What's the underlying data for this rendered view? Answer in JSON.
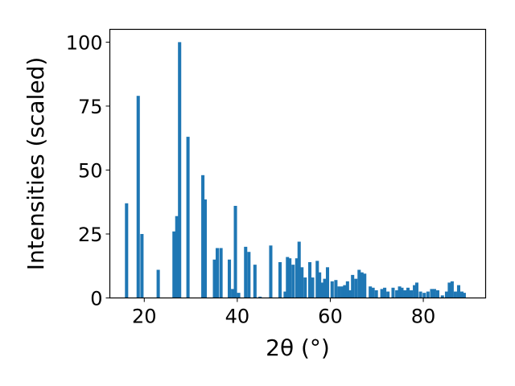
{
  "chart_data": {
    "type": "bar",
    "title": "",
    "xlabel": "2θ (°)",
    "ylabel": "Intensities (scaled)",
    "xlim": [
      12.6,
      93.4
    ],
    "ylim": [
      0,
      105
    ],
    "xticks": [
      20,
      40,
      60,
      80
    ],
    "yticks": [
      0,
      25,
      50,
      75,
      100
    ],
    "grid": false,
    "bar_color": "#1f77b4",
    "bar_width": 0.7,
    "x": [
      16.2,
      18.7,
      19.5,
      23.0,
      26.4,
      27.0,
      27.6,
      29.4,
      32.6,
      33.1,
      35.1,
      35.7,
      36.5,
      38.3,
      39.0,
      39.6,
      40.3,
      41.8,
      42.5,
      43.8,
      44.9,
      47.2,
      49.2,
      50.3,
      50.8,
      51.3,
      52.0,
      52.8,
      53.3,
      53.9,
      54.6,
      55.6,
      56.2,
      57.2,
      57.7,
      58.3,
      58.8,
      59.4,
      60.4,
      61.2,
      61.9,
      62.6,
      63.1,
      63.7,
      64.3,
      64.8,
      65.5,
      66.2,
      66.8,
      67.4,
      68.6,
      69.2,
      69.9,
      71.1,
      71.7,
      72.4,
      73.5,
      74.3,
      74.9,
      75.4,
      76.1,
      76.7,
      77.4,
      78.1,
      78.6,
      79.4,
      80.2,
      81.0,
      81.8,
      82.4,
      83.1,
      84.1,
      85.0,
      85.6,
      86.2,
      86.9,
      87.6,
      88.3,
      88.8
    ],
    "values": [
      37,
      79,
      25,
      11,
      26,
      32,
      100,
      63,
      48,
      38.5,
      15,
      19.5,
      19.5,
      15,
      3.5,
      36,
      2,
      20,
      18,
      13,
      0.5,
      20.5,
      14,
      2.5,
      16,
      15.5,
      13,
      15.5,
      22,
      12,
      8,
      14,
      8,
      14.5,
      10,
      6,
      7.5,
      12,
      6.5,
      7,
      4.5,
      4.5,
      5,
      6.5,
      3,
      9,
      7.5,
      11,
      10,
      9.5,
      4.5,
      4,
      3,
      3.5,
      4,
      2.5,
      4,
      3,
      4.5,
      4,
      3,
      4,
      3,
      5,
      6,
      2.5,
      2,
      2.5,
      3.5,
      3.5,
      3,
      1,
      2.5,
      6,
      6.5,
      2.5,
      5,
      2.5,
      2
    ]
  }
}
